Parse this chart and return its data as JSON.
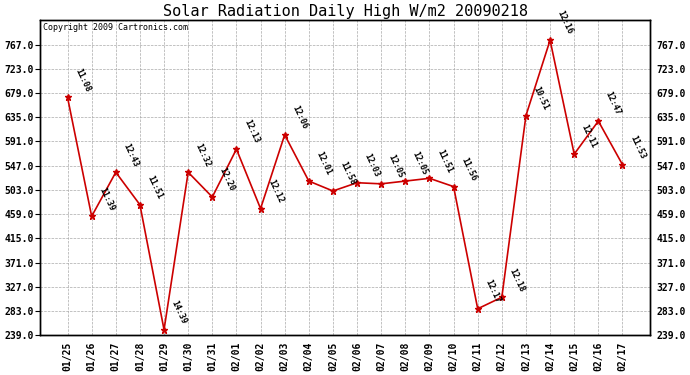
{
  "title": "Solar Radiation Daily High W/m2 20090218",
  "copyright": "Copyright 2009 Cartronics.com",
  "background_color": "#ffffff",
  "plot_bg_color": "#ffffff",
  "grid_color": "#aaaaaa",
  "line_color": "#cc0000",
  "marker_color": "#cc0000",
  "dates": [
    "01/25",
    "01/26",
    "01/27",
    "01/28",
    "01/29",
    "01/30",
    "01/31",
    "02/01",
    "02/02",
    "02/03",
    "02/04",
    "02/05",
    "02/06",
    "02/07",
    "02/08",
    "02/09",
    "02/10",
    "02/11",
    "02/12",
    "02/13",
    "02/14",
    "02/15",
    "02/16",
    "02/17"
  ],
  "values": [
    671,
    455,
    535,
    476,
    249,
    535,
    490,
    577,
    469,
    603,
    519,
    501,
    516,
    514,
    519,
    524,
    509,
    287,
    308,
    638,
    775,
    568,
    628,
    549
  ],
  "labels": [
    "11:08",
    "11:39",
    "12:43",
    "11:51",
    "14:39",
    "12:32",
    "12:20",
    "12:13",
    "12:12",
    "12:06",
    "12:01",
    "11:58",
    "12:03",
    "12:05",
    "12:05",
    "11:51",
    "11:56",
    "12:17",
    "12:18",
    "10:51",
    "12:16",
    "12:11",
    "12:47",
    "11:53"
  ],
  "ylim_min": 239.0,
  "ylim_max": 767.0,
  "ylim_display_max": 811.0,
  "yticks": [
    239.0,
    283.0,
    327.0,
    371.0,
    415.0,
    459.0,
    503.0,
    547.0,
    591.0,
    635.0,
    679.0,
    723.0,
    767.0
  ],
  "title_fontsize": 11,
  "label_fontsize": 6,
  "tick_fontsize": 7,
  "copyright_fontsize": 6
}
